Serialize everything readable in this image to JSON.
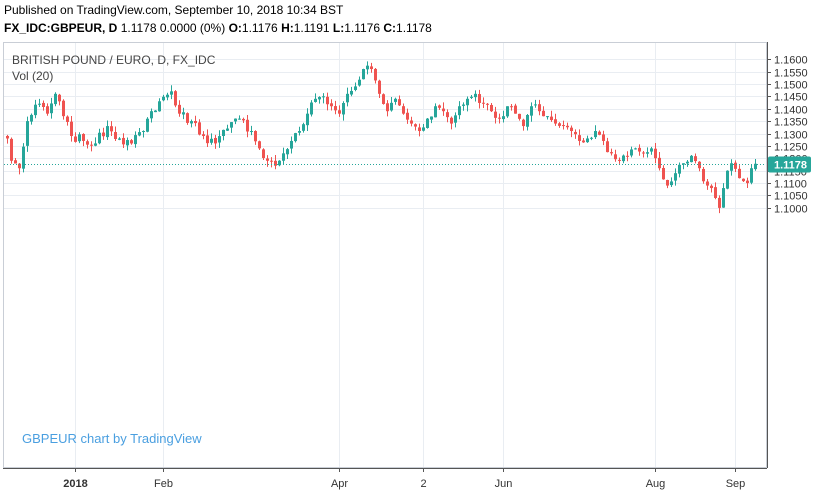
{
  "published": "Published on TradingView.com, September 10, 2018 10:34 BST",
  "symbol_line": {
    "symbol": "FX_IDC:GBPEUR, D",
    "last": "1.1178",
    "change": "0.0000 (0%)",
    "o_label": "O:",
    "o_value": "1.1176",
    "h_label": "H:",
    "h_value": "1.1191",
    "l_label": "L:",
    "l_value": "1.1176",
    "c_label": "C:",
    "c_value": "1.1178"
  },
  "colors": {
    "up": "#26a69a",
    "down": "#ef5350",
    "grid": "#e9edf2",
    "last_price": "#26a69a",
    "watermark": "#4a9fe0"
  },
  "chart_data": {
    "type": "candlestick",
    "title": "BRITISH POUND / EURO, D, FX_IDC",
    "indicator": "Vol (20)",
    "watermark": "GBPEUR chart by TradingView",
    "last_price": 1.1178,
    "last_price_label": "1.1178",
    "ylim": [
      0.9955,
      1.1665
    ],
    "y_ticks": [
      1.1,
      1.105,
      1.11,
      1.115,
      1.12,
      1.125,
      1.13,
      1.135,
      1.14,
      1.145,
      1.15,
      1.155,
      1.16
    ],
    "y_tick_labels": [
      "1.1000",
      "1.1050",
      "1.1100",
      "1.1150",
      "1.1200",
      "1.1250",
      "1.1300",
      "1.1350",
      "1.1400",
      "1.1450",
      "1.1500",
      "1.1550",
      "1.1600"
    ],
    "x_ticks": [
      {
        "label": "2018",
        "bold": true,
        "bar": 17
      },
      {
        "label": "Feb",
        "bold": false,
        "bar": 39
      },
      {
        "label": "Apr",
        "bold": false,
        "bar": 83
      },
      {
        "label": "2",
        "bold": false,
        "bar": 104
      },
      {
        "label": "Jun",
        "bold": false,
        "bar": 124
      },
      {
        "label": "Aug",
        "bold": false,
        "bar": 162
      },
      {
        "label": "Sep",
        "bold": false,
        "bar": 182
      }
    ],
    "anchors": [
      [
        0,
        1.128
      ],
      [
        1,
        1.119
      ],
      [
        3,
        1.116
      ],
      [
        5,
        1.135
      ],
      [
        8,
        1.142
      ],
      [
        10,
        1.138
      ],
      [
        12,
        1.146
      ],
      [
        14,
        1.137
      ],
      [
        16,
        1.129
      ],
      [
        19,
        1.127
      ],
      [
        22,
        1.126
      ],
      [
        25,
        1.133
      ],
      [
        28,
        1.128
      ],
      [
        31,
        1.126
      ],
      [
        34,
        1.131
      ],
      [
        36,
        1.139
      ],
      [
        38,
        1.143
      ],
      [
        41,
        1.147
      ],
      [
        43,
        1.138
      ],
      [
        46,
        1.135
      ],
      [
        49,
        1.129
      ],
      [
        52,
        1.126
      ],
      [
        55,
        1.132
      ],
      [
        58,
        1.136
      ],
      [
        61,
        1.131
      ],
      [
        63,
        1.124
      ],
      [
        65,
        1.119
      ],
      [
        67,
        1.117
      ],
      [
        69,
        1.122
      ],
      [
        71,
        1.127
      ],
      [
        73,
        1.131
      ],
      [
        75,
        1.138
      ],
      [
        77,
        1.144
      ],
      [
        79,
        1.145
      ],
      [
        81,
        1.141
      ],
      [
        83,
        1.138
      ],
      [
        85,
        1.146
      ],
      [
        87,
        1.149
      ],
      [
        89,
        1.156
      ],
      [
        91,
        1.156
      ],
      [
        93,
        1.146
      ],
      [
        95,
        1.139
      ],
      [
        97,
        1.144
      ],
      [
        99,
        1.138
      ],
      [
        101,
        1.134
      ],
      [
        103,
        1.131
      ],
      [
        105,
        1.136
      ],
      [
        107,
        1.141
      ],
      [
        109,
        1.139
      ],
      [
        111,
        1.134
      ],
      [
        113,
        1.141
      ],
      [
        115,
        1.144
      ],
      [
        117,
        1.146
      ],
      [
        119,
        1.142
      ],
      [
        121,
        1.139
      ],
      [
        123,
        1.136
      ],
      [
        125,
        1.141
      ],
      [
        127,
        1.138
      ],
      [
        129,
        1.133
      ],
      [
        131,
        1.141
      ],
      [
        133,
        1.139
      ],
      [
        135,
        1.137
      ],
      [
        137,
        1.134
      ],
      [
        139,
        1.133
      ],
      [
        141,
        1.131
      ],
      [
        143,
        1.127
      ],
      [
        145,
        1.128
      ],
      [
        147,
        1.131
      ],
      [
        149,
        1.127
      ],
      [
        151,
        1.122
      ],
      [
        153,
        1.119
      ],
      [
        155,
        1.121
      ],
      [
        157,
        1.124
      ],
      [
        159,
        1.122
      ],
      [
        161,
        1.124
      ],
      [
        163,
        1.116
      ],
      [
        165,
        1.109
      ],
      [
        167,
        1.114
      ],
      [
        169,
        1.118
      ],
      [
        171,
        1.121
      ],
      [
        173,
        1.116
      ],
      [
        175,
        1.109
      ],
      [
        177,
        1.104
      ],
      [
        178,
        1.1
      ],
      [
        179,
        1.108
      ],
      [
        180,
        1.115
      ],
      [
        181,
        1.118
      ],
      [
        183,
        1.112
      ],
      [
        185,
        1.11
      ],
      [
        186,
        1.116
      ],
      [
        187,
        1.1178
      ]
    ]
  }
}
